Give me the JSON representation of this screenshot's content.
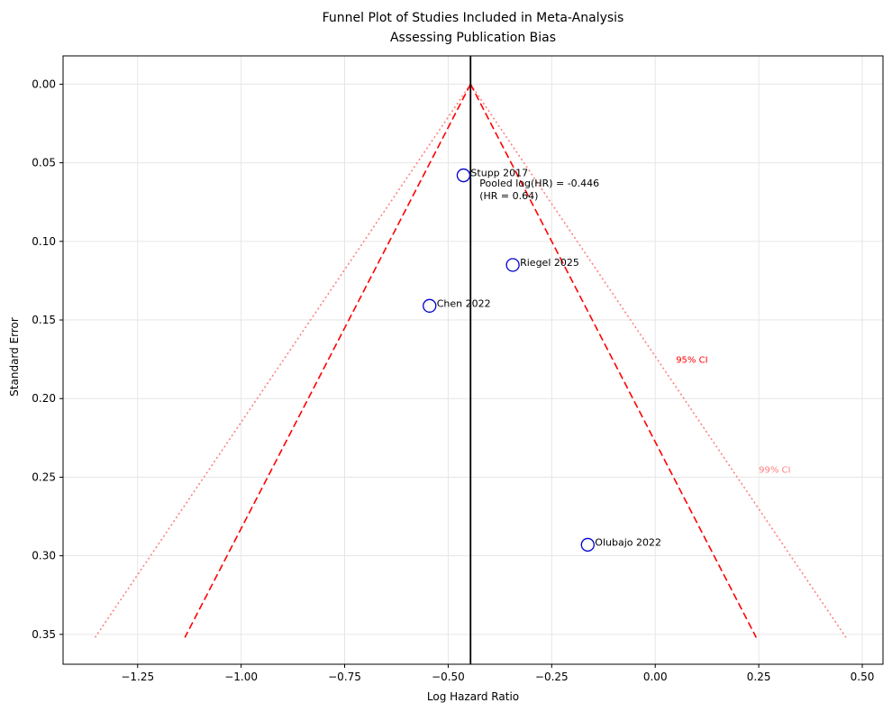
{
  "chart_data": {
    "type": "scatter",
    "title_lines": [
      "Funnel Plot of Studies Included in Meta-Analysis",
      "Assessing Publication Bias"
    ],
    "xlabel": "Log Hazard Ratio",
    "ylabel": "Standard Error",
    "xlim": [
      -1.43,
      0.55
    ],
    "ylim": [
      0.369,
      -0.018
    ],
    "y_inverted": true,
    "grid": true,
    "x_ticks": [
      -1.25,
      -1.0,
      -0.75,
      -0.5,
      -0.25,
      0.0,
      0.25,
      0.5
    ],
    "x_tick_labels": [
      "−1.25",
      "−1.00",
      "−0.75",
      "−0.50",
      "−0.25",
      "0.00",
      "0.25",
      "0.50"
    ],
    "y_ticks": [
      0.0,
      0.05,
      0.1,
      0.15,
      0.2,
      0.25,
      0.3,
      0.35
    ],
    "y_tick_labels": [
      "0.00",
      "0.05",
      "0.10",
      "0.15",
      "0.20",
      "0.25",
      "0.30",
      "0.35"
    ],
    "studies": [
      {
        "name": "Stupp 2017",
        "x": -0.463,
        "y": 0.058
      },
      {
        "name": "Riegel 2025",
        "x": -0.344,
        "y": 0.115
      },
      {
        "name": "Chen 2022",
        "x": -0.545,
        "y": 0.141
      },
      {
        "name": "Olubajo 2022",
        "x": -0.163,
        "y": 0.293
      }
    ],
    "pooled_estimate": {
      "log_hr": -0.446,
      "label_line1": "Pooled log(HR) = -0.446",
      "label_line2": "(HR = 0.64)"
    },
    "funnel": {
      "se_max": 0.352,
      "ci95": {
        "label": "95% CI",
        "z": 1.96,
        "color": "#ff0000",
        "label_at": [
          0.05,
          0.175
        ]
      },
      "ci99": {
        "label": "99% CI",
        "z": 2.576,
        "color": "#ff8080",
        "label_at": [
          0.25,
          0.245
        ]
      }
    },
    "colors": {
      "marker_edge": "#0000cc",
      "pooled_line": "#000000"
    }
  }
}
